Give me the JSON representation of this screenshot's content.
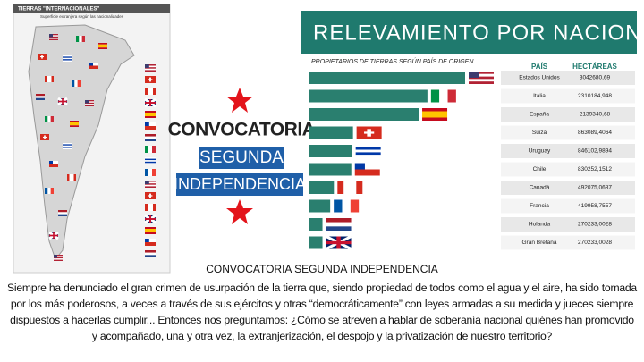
{
  "map": {
    "title": "TIERRAS \"INTERNACIONALES\"",
    "subtitle": "Superficie extranjera según las nacionalidades"
  },
  "logo": {
    "line1": "CONVOCATORIA",
    "line2": "SEGUNDA",
    "line3": "INDEPENDENCIA"
  },
  "chart_data": {
    "type": "bar",
    "title": "RELEVAMIENTO POR NACIONALIDAD",
    "subtitle": "PROPIETARIOS DE TIERRAS SEGÚN PAÍS DE ORIGEN",
    "category_header": "PAÍS",
    "value_header": "HECTÁREAS",
    "color": "#2a7f6f",
    "categories": [
      "Estados Unidos",
      "Italia",
      "España",
      "Suiza",
      "Uruguay",
      "Chile",
      "Canadá",
      "Francia",
      "Holanda",
      "Gran Bretaña"
    ],
    "values": [
      3042680.69,
      2310184.948,
      2139340.68,
      863089.4064,
      846102.9894,
      830252.1512,
      492075.0687,
      419958.7557,
      270233.0028,
      270233.0028
    ],
    "value_labels": [
      "3042680,69",
      "2310184,948",
      "2139340,68",
      "863089,4064",
      "846102,9894",
      "830252,1512",
      "492075,0687",
      "419958,7557",
      "270233,0028",
      "270233,0028"
    ]
  },
  "caption": {
    "heading": "CONVOCATORIA SEGUNDA INDEPENDENCIA",
    "text": "Siempre ha denunciado el gran crimen de usurpación de la tierra que, siendo propiedad de todos como el agua y el aire, ha sido tomada por los más poderosos, a veces a través de sus ejércitos y otras “democráticamente” con leyes armadas a su medida y jueces siempre dispuestos a hacerlas cumplir... Entonces nos preguntamos: ¿Cómo se atreven a hablar de soberanía nacional quiénes han promovido y acompañado, una y otra vez, la extranjerización, el despojo y la privatización de nuestro territorio?"
  }
}
